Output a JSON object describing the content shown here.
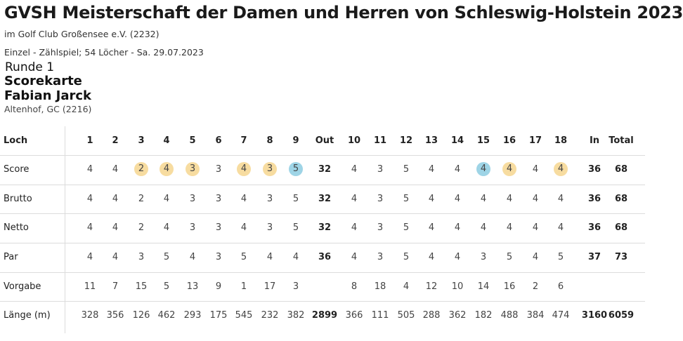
{
  "header": {
    "title": "GVSH Meisterschaft der Damen und Herren von Schleswig-Holstein 2023",
    "venue": "im Golf Club Großensee e.V. (2232)",
    "event_info": "Einzel - Zählspiel; 54 Löcher - Sa. 29.07.2023",
    "round": "Runde 1",
    "scorecard_label": "Scorekarte",
    "player": "Fabian Jarck",
    "club": "Altenhof, GC (2216)"
  },
  "colors": {
    "badge_yellow": "#f7dca0",
    "badge_blue": "#9ed4e6",
    "divider": "#dcdcdc"
  },
  "table": {
    "columns": [
      "1",
      "2",
      "3",
      "4",
      "5",
      "6",
      "7",
      "8",
      "9",
      "Out",
      "10",
      "11",
      "12",
      "13",
      "14",
      "15",
      "16",
      "17",
      "18",
      "In",
      "Total"
    ],
    "header_label": "Loch",
    "rows": [
      {
        "label": "Score",
        "values": [
          "4",
          "4",
          "2",
          "4",
          "3",
          "3",
          "4",
          "3",
          "5",
          "32",
          "4",
          "3",
          "5",
          "4",
          "4",
          "4",
          "4",
          "4",
          "4",
          "36",
          "68"
        ],
        "badges": [
          "",
          "",
          "yellow",
          "yellow",
          "yellow",
          "",
          "yellow",
          "yellow",
          "blue",
          "",
          "",
          "",
          "",
          "",
          "",
          "blue",
          "yellow",
          "",
          "yellow",
          "",
          ""
        ]
      },
      {
        "label": "Brutto",
        "values": [
          "4",
          "4",
          "2",
          "4",
          "3",
          "3",
          "4",
          "3",
          "5",
          "32",
          "4",
          "3",
          "5",
          "4",
          "4",
          "4",
          "4",
          "4",
          "4",
          "36",
          "68"
        ]
      },
      {
        "label": "Netto",
        "values": [
          "4",
          "4",
          "2",
          "4",
          "3",
          "3",
          "4",
          "3",
          "5",
          "32",
          "4",
          "3",
          "5",
          "4",
          "4",
          "4",
          "4",
          "4",
          "4",
          "36",
          "68"
        ]
      },
      {
        "label": "Par",
        "values": [
          "4",
          "4",
          "3",
          "5",
          "4",
          "3",
          "5",
          "4",
          "4",
          "36",
          "4",
          "3",
          "5",
          "4",
          "4",
          "3",
          "5",
          "4",
          "5",
          "37",
          "73"
        ]
      },
      {
        "label": "Vorgabe",
        "values": [
          "11",
          "7",
          "15",
          "5",
          "13",
          "9",
          "1",
          "17",
          "3",
          "",
          "8",
          "18",
          "4",
          "12",
          "10",
          "14",
          "16",
          "2",
          "6",
          "",
          ""
        ]
      },
      {
        "label": "Länge (m)",
        "values": [
          "328",
          "356",
          "126",
          "462",
          "293",
          "175",
          "545",
          "232",
          "382",
          "2899",
          "366",
          "111",
          "505",
          "288",
          "362",
          "182",
          "488",
          "384",
          "474",
          "3160",
          "6059"
        ]
      }
    ]
  }
}
